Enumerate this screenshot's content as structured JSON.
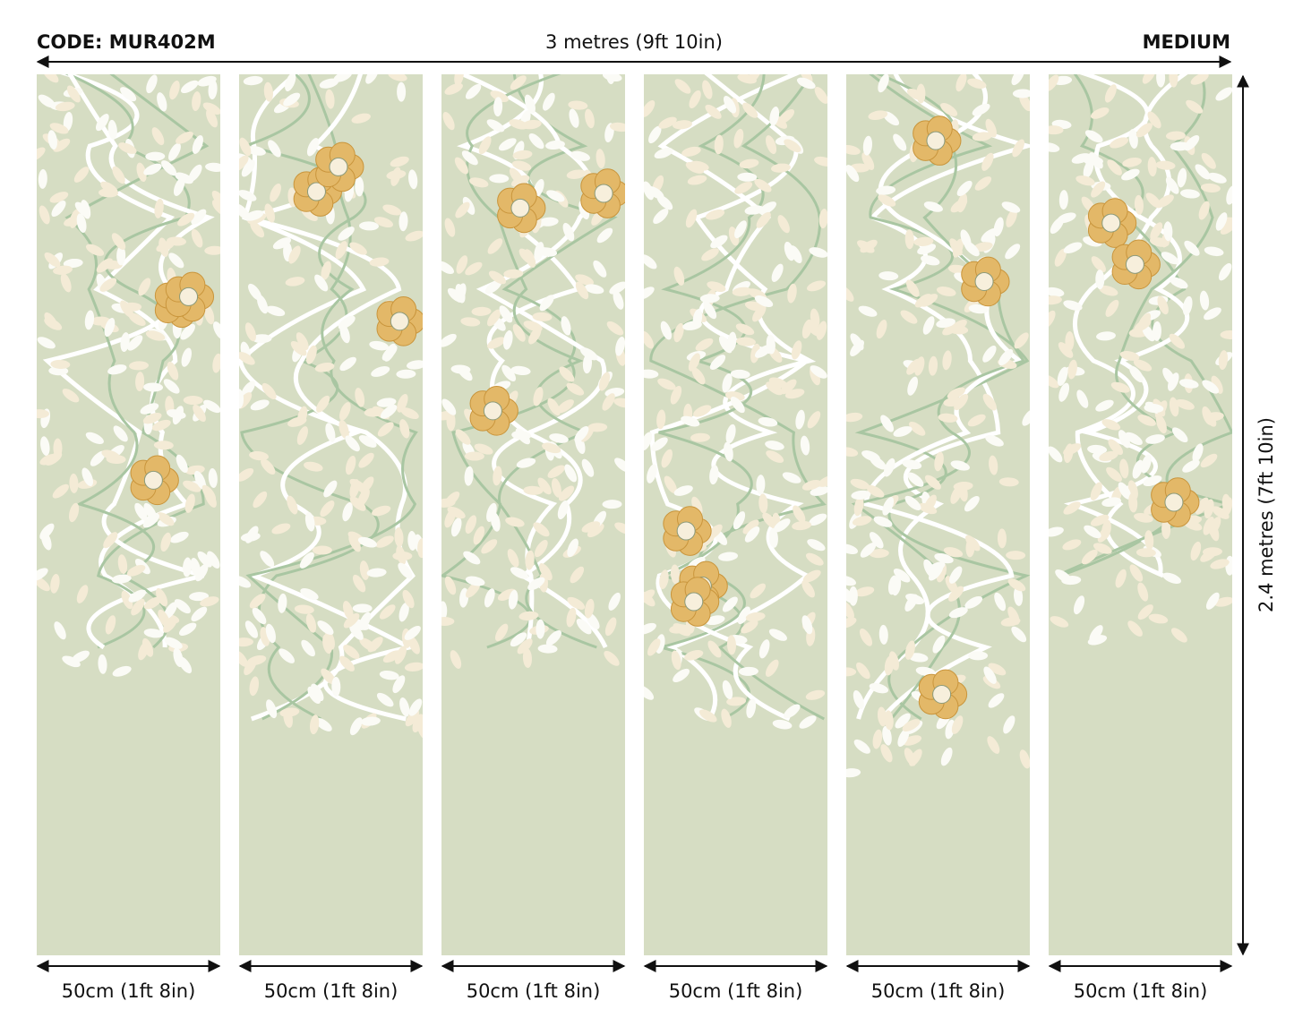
{
  "header": {
    "code": "CODE: MUR402M",
    "width": "3 metres (9ft 10in)",
    "size": "MEDIUM"
  },
  "height": "2.4 metres (7ft 10in)",
  "panels": [
    {
      "label": "50cm (1ft 8in)"
    },
    {
      "label": "50cm (1ft 8in)"
    },
    {
      "label": "50cm (1ft 8in)"
    },
    {
      "label": "50cm (1ft 8in)"
    },
    {
      "label": "50cm (1ft 8in)"
    },
    {
      "label": "50cm (1ft 8in)"
    }
  ]
}
